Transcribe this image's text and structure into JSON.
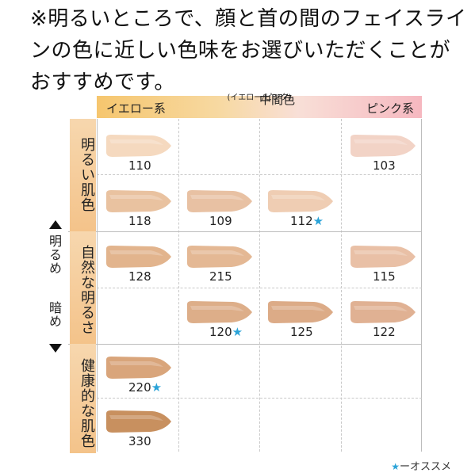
{
  "intro_text": "※明るいところで、顔と首の間のフェイスラインの色に近しい色味をお選びいただくことがおすすめです。",
  "header": {
    "yellow": "イエロー系",
    "middle": "中間色",
    "middle_sub": "(イエロー/ピンク)",
    "pink": "ピンク系"
  },
  "rows": {
    "bright": "明るい肌色",
    "natural": "自然な明るさ",
    "healthy": "健康的な肌色"
  },
  "scale": {
    "lighter": "明るめ",
    "darker": "暗め"
  },
  "legend": {
    "star": "★",
    "text": "ーオススメ"
  },
  "colors": {
    "recommend_star": "#2aa3d8",
    "yellow_band": "#f6c66e",
    "pink_band": "#f6b8c0"
  },
  "chart_data": {
    "type": "table",
    "columns": [
      "イエロー系",
      "中間色 (イエロー/ピンク)",
      "",
      "ピンク系"
    ],
    "row_groups": [
      "明るい肌色",
      "自然な明るさ",
      "健康的な肌色"
    ],
    "swatches": [
      {
        "code": "110",
        "recommended": false,
        "row": 0,
        "col": 0,
        "color": "#f5d9bf"
      },
      {
        "code": "103",
        "recommended": false,
        "row": 0,
        "col": 3,
        "color": "#f2d3c6"
      },
      {
        "code": "118",
        "recommended": false,
        "row": 1,
        "col": 0,
        "color": "#e9c2a0"
      },
      {
        "code": "109",
        "recommended": false,
        "row": 1,
        "col": 1,
        "color": "#e8c1a3"
      },
      {
        "code": "112",
        "recommended": true,
        "row": 1,
        "col": 2,
        "color": "#efcdb3"
      },
      {
        "code": "128",
        "recommended": false,
        "row": 2,
        "col": 0,
        "color": "#e2b48d"
      },
      {
        "code": "215",
        "recommended": false,
        "row": 2,
        "col": 1,
        "color": "#e4b894"
      },
      {
        "code": "115",
        "recommended": false,
        "row": 2,
        "col": 3,
        "color": "#e9c0a6"
      },
      {
        "code": "120",
        "recommended": true,
        "row": 3,
        "col": 1,
        "color": "#ddae89"
      },
      {
        "code": "125",
        "recommended": false,
        "row": 3,
        "col": 2,
        "color": "#dcab87"
      },
      {
        "code": "122",
        "recommended": false,
        "row": 3,
        "col": 3,
        "color": "#e0b193"
      },
      {
        "code": "220",
        "recommended": true,
        "row": 4,
        "col": 0,
        "color": "#d9a57b"
      },
      {
        "code": "330",
        "recommended": false,
        "row": 5,
        "col": 0,
        "color": "#c8905f"
      }
    ]
  }
}
